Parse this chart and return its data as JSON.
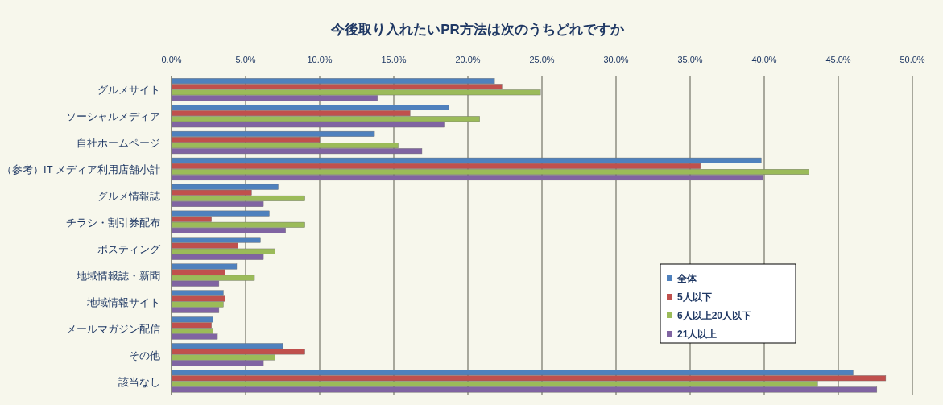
{
  "chart_data": {
    "type": "bar",
    "title": "今後取り入れたいPR方法は次のうちどれですか",
    "orientation": "horizontal",
    "categories": [
      "グルメサイト",
      "ソーシャルメディア",
      "自社ホームページ",
      "（参考）IT メディア利用店舗小計",
      "グルメ情報誌",
      "チラシ・割引券配布",
      "ポスティング",
      "地域情報誌・新聞",
      "地域情報サイト",
      "メールマガジン配信",
      "その他",
      "該当なし"
    ],
    "series": [
      {
        "name": "全体",
        "color": "#4f81bd",
        "values": [
          21.8,
          18.7,
          13.7,
          39.8,
          7.2,
          6.6,
          6.0,
          4.4,
          3.5,
          2.8,
          7.5,
          46.0
        ]
      },
      {
        "name": "5人以下",
        "color": "#c0504d",
        "values": [
          22.3,
          16.1,
          10.0,
          35.7,
          5.4,
          2.7,
          4.5,
          3.6,
          3.6,
          2.7,
          9.0,
          48.2
        ]
      },
      {
        "name": "6人以上20人以下",
        "color": "#9bbb59",
        "values": [
          24.9,
          20.8,
          15.3,
          43.0,
          9.0,
          9.0,
          7.0,
          5.6,
          3.5,
          2.8,
          7.0,
          43.6
        ]
      },
      {
        "name": "21人以上",
        "color": "#8064a2",
        "values": [
          13.9,
          18.4,
          16.9,
          39.9,
          6.2,
          7.7,
          6.2,
          3.2,
          3.2,
          3.1,
          6.2,
          47.6
        ]
      }
    ],
    "xlim": [
      0,
      50
    ],
    "xticks": [
      {
        "value": 0,
        "label": "0.0%"
      },
      {
        "value": 5,
        "label": "5.0%"
      },
      {
        "value": 10,
        "label": "10.0%"
      },
      {
        "value": 15,
        "label": "15.0%"
      },
      {
        "value": 20,
        "label": "20.0%"
      },
      {
        "value": 25,
        "label": "25.0%"
      },
      {
        "value": 30,
        "label": "30.0%"
      },
      {
        "value": 35,
        "label": "35.0%"
      },
      {
        "value": 40,
        "label": "40.0%"
      },
      {
        "value": 45,
        "label": "45.0%"
      },
      {
        "value": 50,
        "label": "50.0%"
      }
    ],
    "grid": "x",
    "legend": "bottom right"
  }
}
